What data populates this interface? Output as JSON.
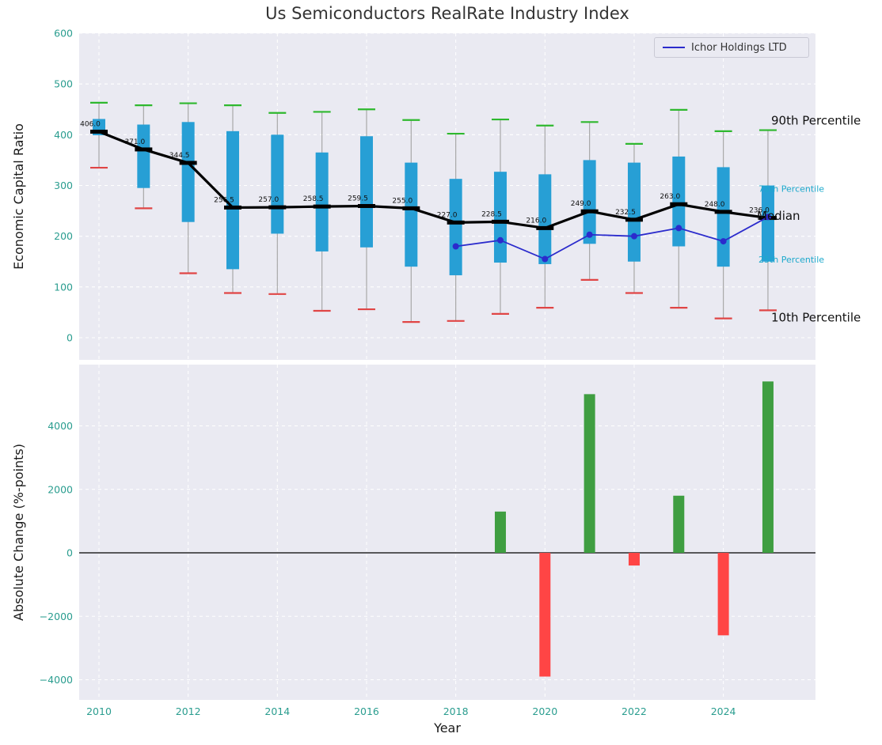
{
  "title": "Us Semiconductors RealRate Industry Index",
  "legend": {
    "label": "Ichor Holdings LTD"
  },
  "colors": {
    "panel_bg": "#eaeaf2",
    "grid": "#ffffff",
    "tick": "#2a9d8f",
    "box": "#279fd5",
    "whisker": "#a8a8a8",
    "cap_high": "#2eb82e",
    "cap_low": "#e04545",
    "median": "#000000",
    "ichor": "#2b2bcc",
    "bar_pos": "#3f9e41",
    "bar_neg": "#ff4545",
    "annotation_cyan": "#1da9cc",
    "annotation_black": "#111111",
    "title": "#333333"
  },
  "chart_data": [
    {
      "type": "boxplot",
      "ylabel": "Economic Capital Ratio",
      "ylim": [
        0,
        600
      ],
      "yticks": [
        0,
        100,
        200,
        300,
        400,
        500,
        600
      ],
      "years": [
        2010,
        2011,
        2012,
        2013,
        2014,
        2015,
        2016,
        2017,
        2018,
        2019,
        2020,
        2021,
        2022,
        2023,
        2024,
        2025
      ],
      "median": [
        406.0,
        371.0,
        344.5,
        256.5,
        257.0,
        258.5,
        259.5,
        255.0,
        227.0,
        228.5,
        216.0,
        249.0,
        232.5,
        263.0,
        248.0,
        236.0
      ],
      "p75": [
        431,
        420,
        425,
        407,
        400,
        365,
        397,
        345,
        313,
        327,
        322,
        350,
        345,
        357,
        336,
        300
      ],
      "p25": [
        399,
        295,
        228,
        135,
        205,
        170,
        178,
        140,
        123,
        148,
        145,
        185,
        150,
        180,
        140,
        150
      ],
      "p90": [
        463,
        458,
        462,
        458,
        443,
        445,
        450,
        429,
        402,
        430,
        418,
        425,
        382,
        449,
        407,
        409
      ],
      "p10": [
        335,
        255,
        127,
        88,
        86,
        53,
        56,
        31,
        33,
        47,
        59,
        114,
        88,
        59,
        38,
        54
      ],
      "series": [
        {
          "name": "Ichor Holdings LTD",
          "years": [
            2018,
            2019,
            2020,
            2021,
            2022,
            2023,
            2024,
            2025
          ],
          "values": [
            180,
            192,
            155,
            203,
            200,
            216,
            190,
            238
          ]
        }
      ],
      "annotations": [
        {
          "text": "90th Percentile",
          "value": 428,
          "x": 974,
          "small": false
        },
        {
          "text": "75th Percentile",
          "value": 295,
          "x": 958,
          "small": true
        },
        {
          "text": "Median",
          "value": 240,
          "x": 956,
          "small": false
        },
        {
          "text": "25th Percentile",
          "value": 156,
          "x": 958,
          "small": true
        },
        {
          "text": "10th Percentile",
          "value": 40,
          "x": 974,
          "small": false
        }
      ]
    },
    {
      "type": "bar",
      "ylabel": "Absolute Change (%-points)",
      "xlabel": "Year",
      "yticks": [
        -4000,
        -2000,
        0,
        2000,
        4000
      ],
      "xticks": [
        2010,
        2012,
        2014,
        2016,
        2018,
        2020,
        2022,
        2024
      ],
      "years": [
        2019,
        2020,
        2021,
        2022,
        2023,
        2024,
        2025
      ],
      "values": [
        1300,
        -3900,
        5000,
        -400,
        1800,
        -2600,
        5400
      ]
    }
  ]
}
